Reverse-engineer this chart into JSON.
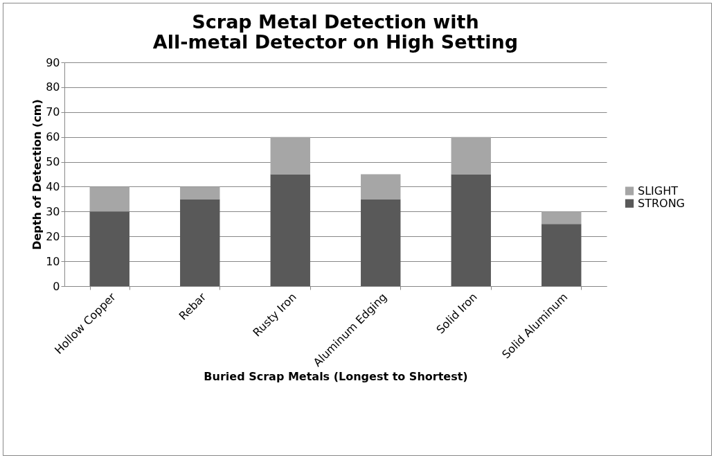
{
  "chart_data": {
    "type": "bar",
    "title": "Scrap Metal Detection with All-metal Detector on High Setting",
    "xlabel": "Buried Scrap Metals (Longest to Shortest)",
    "ylabel": "Depth of Detection (cm)",
    "categories": [
      "Hollow Copper",
      "Rebar",
      "Rusty Iron",
      "Aluminum Edging",
      "Solid Iron",
      "Solid Aluminum"
    ],
    "series": [
      {
        "name": "STRONG",
        "color": "#595959",
        "values": [
          30,
          35,
          45,
          35,
          45,
          25
        ]
      },
      {
        "name": "SLIGHT",
        "color": "#a6a6a6",
        "values": [
          10,
          5,
          15,
          10,
          15,
          5
        ]
      }
    ],
    "stacked": true,
    "ylim": [
      0,
      90
    ],
    "yticks": [
      0,
      10,
      20,
      30,
      40,
      50,
      60,
      70,
      80,
      90
    ],
    "grid": "y",
    "legend": "right"
  }
}
